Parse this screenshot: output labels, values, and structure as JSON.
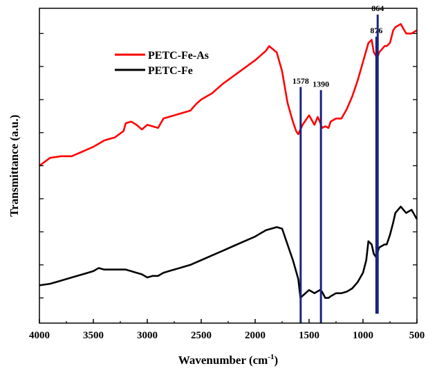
{
  "chart_data": {
    "type": "line",
    "title": "",
    "xlabel": "Wavenumber (cm",
    "xlabel_sup": "-1",
    "xlabel_close": ")",
    "ylabel": "Transmittance (a.u.)",
    "xlim": [
      4000,
      500
    ],
    "ylim": [
      0,
      100
    ],
    "x_ticks": [
      4000,
      3500,
      3000,
      2500,
      2000,
      1500,
      1000,
      500
    ],
    "x_tick_labels": [
      "4000",
      "3500",
      "3000",
      "2500",
      "2000",
      "1500",
      "1000",
      "500"
    ],
    "y_tick_values": [
      8,
      18.5,
      29,
      39.5,
      50,
      60.5,
      71,
      81.5,
      92
    ],
    "y_tick_labels_shown": false,
    "grid": false,
    "legend_position": "top-left",
    "series": [
      {
        "name": "PETC-Fe-As",
        "color": "#ff0000",
        "x": [
          4000,
          3900,
          3800,
          3700,
          3600,
          3500,
          3400,
          3350,
          3300,
          3220,
          3200,
          3150,
          3100,
          3050,
          3000,
          2950,
          2900,
          2850,
          2800,
          2700,
          2600,
          2550,
          2500,
          2400,
          2300,
          2200,
          2100,
          2000,
          1950,
          1900,
          1870,
          1800,
          1750,
          1700,
          1650,
          1620,
          1600,
          1560,
          1500,
          1450,
          1420,
          1400,
          1380,
          1350,
          1320,
          1300,
          1250,
          1200,
          1150,
          1100,
          1050,
          1000,
          950,
          920,
          900,
          880,
          870,
          850,
          800,
          780,
          750,
          720,
          700,
          650,
          600,
          550,
          500
        ],
        "values": [
          50,
          52.5,
          53,
          53,
          54.5,
          56,
          58,
          58.5,
          59,
          61,
          63.5,
          64,
          63,
          61.5,
          63,
          62.5,
          62,
          65,
          65.5,
          66.5,
          67.5,
          69.5,
          71,
          73,
          76,
          78.5,
          81,
          83.5,
          85,
          86.5,
          88,
          86,
          80,
          70,
          64,
          61,
          60,
          63,
          66,
          63,
          65.5,
          64,
          62,
          62.5,
          62,
          64,
          65,
          65,
          68,
          72,
          77,
          83,
          89,
          90,
          86,
          85,
          84,
          86,
          88,
          88,
          89,
          93,
          94,
          95,
          92,
          92,
          93
        ]
      },
      {
        "name": "PETC-Fe",
        "color": "#000000",
        "x": [
          4000,
          3900,
          3800,
          3700,
          3600,
          3500,
          3450,
          3400,
          3300,
          3200,
          3150,
          3100,
          3050,
          3000,
          2950,
          2900,
          2850,
          2800,
          2700,
          2600,
          2500,
          2400,
          2300,
          2200,
          2100,
          2000,
          1950,
          1900,
          1850,
          1800,
          1750,
          1700,
          1650,
          1600,
          1580,
          1550,
          1500,
          1450,
          1400,
          1380,
          1350,
          1320,
          1300,
          1250,
          1200,
          1150,
          1100,
          1050,
          1000,
          970,
          950,
          920,
          900,
          880,
          850,
          800,
          780,
          750,
          720,
          700,
          650,
          600,
          550,
          500
        ],
        "values": [
          12,
          12.5,
          13.5,
          14.5,
          15.5,
          16.5,
          17.5,
          17,
          17,
          17,
          16.5,
          16,
          15.5,
          14.5,
          15,
          15,
          16,
          16.5,
          17.5,
          18.5,
          20,
          21.5,
          23,
          24.5,
          26,
          27.5,
          28.5,
          29.5,
          30,
          30.5,
          30,
          25,
          20,
          14,
          8,
          9,
          10.5,
          9.5,
          10.5,
          10,
          8,
          8,
          8.5,
          9.5,
          9.5,
          10,
          11,
          13,
          16,
          20,
          26,
          25,
          22,
          21,
          24,
          25,
          25,
          28,
          32,
          35,
          37,
          35,
          36,
          33
        ]
      }
    ],
    "annotations": [
      {
        "label": "1578",
        "x": 1578,
        "from": 0,
        "to": 75
      },
      {
        "label": "1390",
        "x": 1390,
        "from": 0,
        "to": 74
      },
      {
        "label": "876",
        "x": 876,
        "from": 3,
        "to": 91
      },
      {
        "label": "864",
        "x": 864,
        "from": 3,
        "to": 98
      }
    ],
    "annotation_color": "#1a237e"
  }
}
